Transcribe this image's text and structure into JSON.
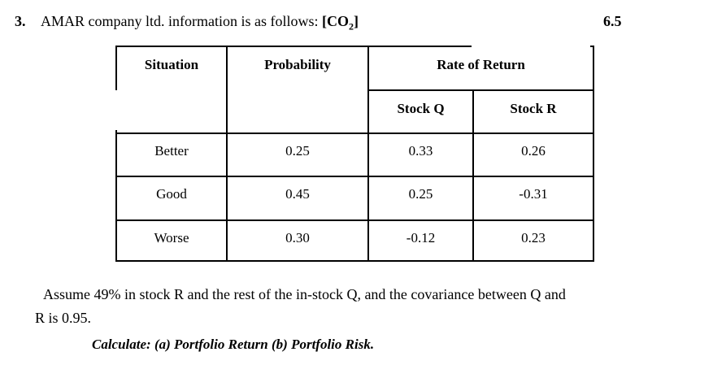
{
  "header": {
    "question_number": "3.",
    "question_text": "AMAR company ltd. information is as follows: ",
    "co2_prefix": "[CO",
    "co2_sub": "2",
    "co2_suffix": "]",
    "marks": "6.5"
  },
  "table": {
    "headers": {
      "situation": "Situation",
      "probability": "Probability",
      "rate_of_return": "Rate of Return",
      "stock_q": "Stock Q",
      "stock_r": "Stock R"
    },
    "rows": [
      {
        "situation": "Better",
        "probability": "0.25",
        "stock_q": "0.33",
        "stock_r": "0.26"
      },
      {
        "situation": "Good",
        "probability": "0.45",
        "stock_q": "0.25",
        "stock_r": "-0.31"
      },
      {
        "situation": "Worse",
        "probability": "0.30",
        "stock_q": "-0.12",
        "stock_r": "0.23"
      }
    ]
  },
  "notes": {
    "assumption_line1": "Assume 49% in stock R and the rest of the in-stock Q, and the covariance between Q and",
    "assumption_line2": "R is 0.95.",
    "instruction": "Calculate: (a) Portfolio Return (b) Portfolio Risk."
  }
}
